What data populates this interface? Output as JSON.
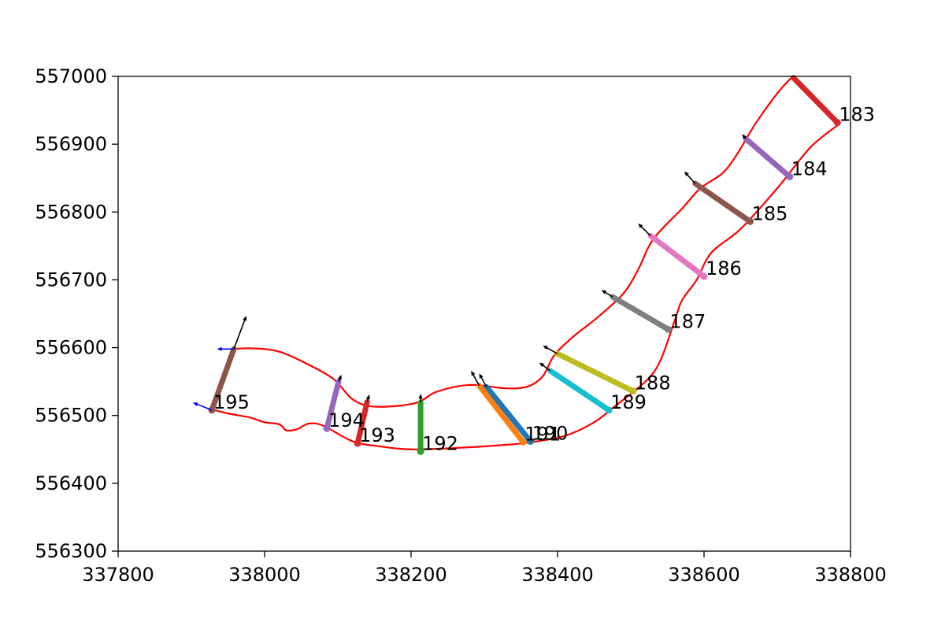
{
  "chart_data": {
    "type": "line",
    "title": "",
    "xlabel": "",
    "ylabel": "",
    "xlim": [
      337800,
      338800
    ],
    "ylim": [
      556300,
      557000
    ],
    "xticks": [
      337800,
      338000,
      338200,
      338400,
      338600,
      338800
    ],
    "yticks": [
      556300,
      556400,
      556500,
      556600,
      556700,
      556800,
      556900,
      557000
    ],
    "grid": false,
    "legend": "none",
    "boundary_color": "#ff0000",
    "boundaries": [
      [
        [
          337955,
          556598
        ],
        [
          337985,
          556599
        ],
        [
          338020,
          556594
        ],
        [
          338060,
          556575
        ],
        [
          338095,
          556553
        ],
        [
          338120,
          556524
        ],
        [
          338150,
          556513
        ],
        [
          338205,
          556518
        ],
        [
          338235,
          556535
        ],
        [
          338280,
          556545
        ],
        [
          338330,
          556540
        ],
        [
          338360,
          556543
        ],
        [
          338380,
          556558
        ],
        [
          338395,
          556588
        ],
        [
          338420,
          556615
        ],
        [
          338455,
          556645
        ],
        [
          338490,
          556680
        ],
        [
          338510,
          556715
        ],
        [
          338525,
          556750
        ],
        [
          338540,
          556772
        ],
        [
          338570,
          556805
        ],
        [
          338595,
          556835
        ],
        [
          338625,
          556857
        ],
        [
          338645,
          556885
        ],
        [
          338670,
          556930
        ],
        [
          338700,
          556975
        ],
        [
          338720,
          556999
        ]
      ],
      [
        [
          337925,
          556510
        ],
        [
          337950,
          556503
        ],
        [
          337980,
          556497
        ],
        [
          338000,
          556490
        ],
        [
          338020,
          556487
        ],
        [
          338030,
          556478
        ],
        [
          338045,
          556480
        ],
        [
          338060,
          556488
        ],
        [
          338080,
          556485
        ],
        [
          338120,
          556462
        ],
        [
          338160,
          556454
        ],
        [
          338200,
          556450
        ],
        [
          338260,
          556452
        ],
        [
          338320,
          556456
        ],
        [
          338360,
          556460
        ],
        [
          338410,
          556470
        ],
        [
          338450,
          556490
        ],
        [
          338480,
          556515
        ],
        [
          338520,
          556550
        ],
        [
          338540,
          556580
        ],
        [
          338560,
          556640
        ],
        [
          338570,
          556670
        ],
        [
          338590,
          556700
        ],
        [
          338610,
          556740
        ],
        [
          338650,
          556775
        ],
        [
          338700,
          556835
        ],
        [
          338745,
          556895
        ],
        [
          338785,
          556930
        ]
      ]
    ],
    "transects": [
      {
        "label": "183",
        "color": "#d62728",
        "start": [
          338722,
          556998
        ],
        "end": [
          338782,
          556932
        ]
      },
      {
        "label": "184",
        "color": "#9467bd",
        "start": [
          338657,
          556908
        ],
        "end": [
          338717,
          556852
        ]
      },
      {
        "label": "185",
        "color": "#8c564b",
        "start": [
          338588,
          556842
        ],
        "end": [
          338663,
          556786
        ]
      },
      {
        "label": "186",
        "color": "#e377c2",
        "start": [
          338527,
          556765
        ],
        "end": [
          338600,
          556705
        ]
      },
      {
        "label": "187",
        "color": "#7f7f7f",
        "start": [
          338475,
          556675
        ],
        "end": [
          338551,
          556627
        ]
      },
      {
        "label": "188",
        "color": "#bcbd22",
        "start": [
          338400,
          556591
        ],
        "end": [
          338503,
          556536
        ]
      },
      {
        "label": "189",
        "color": "#17becf",
        "start": [
          338390,
          556566
        ],
        "end": [
          338470,
          556508
        ]
      },
      {
        "label": "190",
        "color": "#1f77b4",
        "start": [
          338303,
          556542
        ],
        "end": [
          338363,
          556462
        ]
      },
      {
        "label": "191",
        "color": "#ff7f0e",
        "start": [
          338293,
          556544
        ],
        "end": [
          338353,
          556461
        ]
      },
      {
        "label": "192",
        "color": "#2ca02c",
        "start": [
          338213,
          556519
        ],
        "end": [
          338213,
          556447
        ]
      },
      {
        "label": "193",
        "color": "#d62728",
        "start": [
          338140,
          556520
        ],
        "end": [
          338127,
          556459
        ]
      },
      {
        "label": "194",
        "color": "#9467bd",
        "start": [
          338101,
          556550
        ],
        "end": [
          338085,
          556481
        ]
      },
      {
        "label": "195",
        "color": "#8c564b",
        "start": [
          337958,
          556598
        ],
        "end": [
          337928,
          556508
        ]
      }
    ],
    "arrow_color": "#000000",
    "arrows": [
      {
        "from": [
          338722,
          556998
        ],
        "to": [
          338722,
          556998
        ]
      },
      {
        "from": [
          338657,
          556908
        ],
        "to": [
          338652,
          556915
        ]
      },
      {
        "from": [
          338588,
          556842
        ],
        "to": [
          338573,
          556860
        ]
      },
      {
        "from": [
          338527,
          556765
        ],
        "to": [
          338510,
          556783
        ]
      },
      {
        "from": [
          338475,
          556675
        ],
        "to": [
          338460,
          556685
        ]
      },
      {
        "from": [
          338400,
          556591
        ],
        "to": [
          338380,
          556603
        ]
      },
      {
        "from": [
          338390,
          556566
        ],
        "to": [
          338375,
          556578
        ]
      },
      {
        "from": [
          338303,
          556542
        ],
        "to": [
          338293,
          556562
        ]
      },
      {
        "from": [
          338293,
          556544
        ],
        "to": [
          338282,
          556566
        ]
      },
      {
        "from": [
          338213,
          556519
        ],
        "to": [
          338213,
          556532
        ]
      },
      {
        "from": [
          338140,
          556520
        ],
        "to": [
          338143,
          556531
        ]
      },
      {
        "from": [
          338101,
          556550
        ],
        "to": [
          338105,
          556560
        ]
      },
      {
        "from": [
          337958,
          556598
        ],
        "to": [
          337975,
          556647
        ]
      }
    ],
    "secondary_arrow_color": "#0000ff",
    "secondary_arrows": [
      {
        "from": [
          337958,
          556598
        ],
        "to": [
          337935,
          556598
        ]
      },
      {
        "from": [
          337928,
          556508
        ],
        "to": [
          337902,
          556519
        ]
      }
    ]
  }
}
